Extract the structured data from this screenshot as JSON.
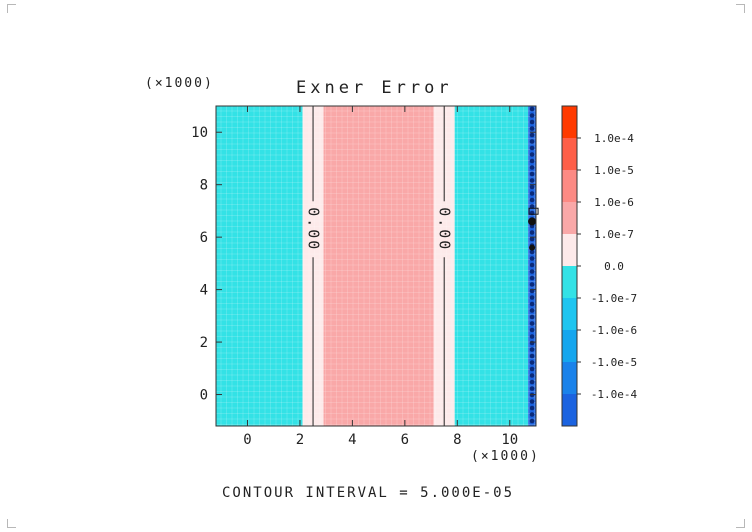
{
  "chart_data": {
    "type": "heatmap",
    "title": "Exner Error",
    "x_multiplier_label": "(×1000)",
    "y_multiplier_label": "(×1000)",
    "xlim": [
      -1.2,
      11.0
    ],
    "ylim": [
      -1.2,
      11.0
    ],
    "x_ticks": [
      0,
      2,
      4,
      6,
      8,
      10
    ],
    "y_ticks": [
      0,
      2,
      4,
      6,
      8,
      10
    ],
    "x_tick_labels": [
      "0",
      "2",
      "4",
      "6",
      "8",
      "10"
    ],
    "y_tick_labels": [
      "0",
      "2",
      "4",
      "6",
      "8",
      "10"
    ],
    "grid": true,
    "regions": [
      {
        "x0": -1.2,
        "x1": 2.1,
        "level": "-1.0e-6",
        "color": "#33e2e6"
      },
      {
        "x0": 2.1,
        "x1": 2.9,
        "level": "0.0",
        "color": "#fdeaea"
      },
      {
        "x0": 2.9,
        "x1": 7.1,
        "level": "1.0e-6",
        "color": "#f9a8a8"
      },
      {
        "x0": 7.1,
        "x1": 7.9,
        "level": "0.0",
        "color": "#fdeaea"
      },
      {
        "x0": 7.9,
        "x1": 10.7,
        "level": "-1.0e-6",
        "color": "#33e2e6"
      },
      {
        "x0": 10.7,
        "x1": 11.0,
        "level": "-1.0e-4",
        "color": "#1b63e0"
      }
    ],
    "contours": [
      {
        "x": 2.5,
        "label": "0.00",
        "label_y": 6.3
      },
      {
        "x": 7.5,
        "label": "0.00",
        "label_y": 6.3
      }
    ],
    "colorbar": {
      "levels": [
        {
          "color": "#ff3a00",
          "label": "1.0e-4"
        },
        {
          "color": "#fe5f48",
          "label": "1.0e-5"
        },
        {
          "color": "#fc8a84",
          "label": "1.0e-6"
        },
        {
          "color": "#f9a8a8",
          "label": "1.0e-7"
        },
        {
          "color": "#fdeaea",
          "label": "0.0"
        },
        {
          "color": "#33e2e6",
          "label": "-1.0e-7"
        },
        {
          "color": "#1ec5f0",
          "label": "-1.0e-6"
        },
        {
          "color": "#15a6ee",
          "label": "-1.0e-5"
        },
        {
          "color": "#1a82ea",
          "label": "-1.0e-4"
        },
        {
          "color": "#1b63e0",
          "label": ""
        }
      ]
    },
    "footer": "CONTOUR INTERVAL = 5.000E-05"
  }
}
